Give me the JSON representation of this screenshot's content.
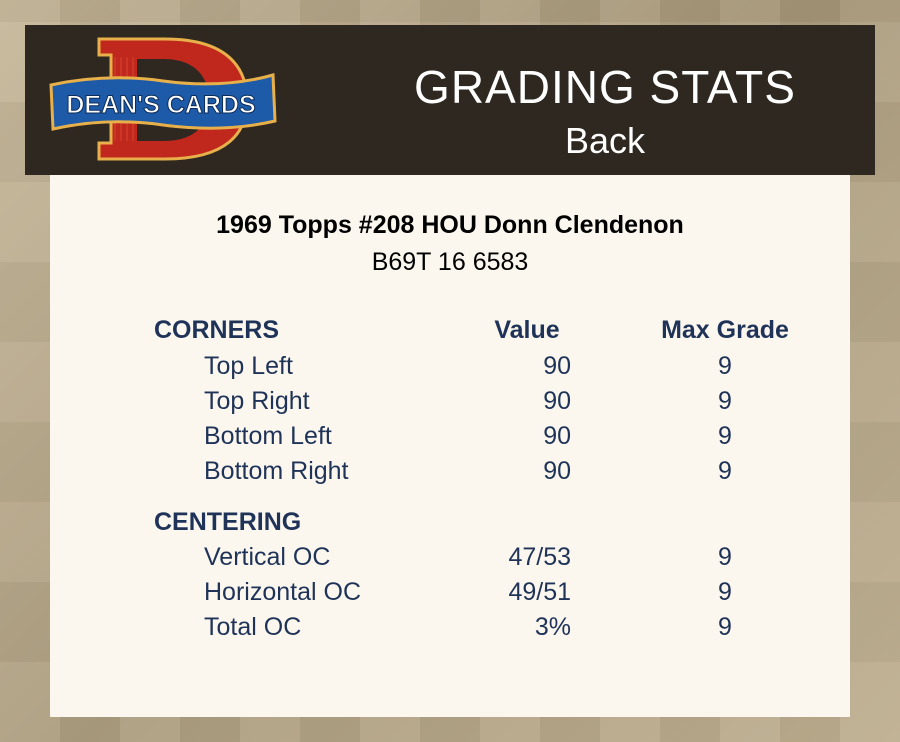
{
  "brand": {
    "logo_text": "DEAN'S CARDS",
    "logo_letter": "D"
  },
  "header": {
    "title": "GRADING STATS",
    "subtitle": "Back"
  },
  "card": {
    "title": "1969 Topps #208 HOU Donn Clendenon",
    "code": "B69T 16 6583"
  },
  "columns": {
    "value": "Value",
    "max_grade": "Max Grade"
  },
  "sections": [
    {
      "name": "CORNERS",
      "rows": [
        {
          "label": "Top Left",
          "value": "90",
          "max": "9"
        },
        {
          "label": "Top Right",
          "value": "90",
          "max": "9"
        },
        {
          "label": "Bottom Left",
          "value": "90",
          "max": "9"
        },
        {
          "label": "Bottom Right",
          "value": "90",
          "max": "9"
        }
      ]
    },
    {
      "name": "CENTERING",
      "rows": [
        {
          "label": "Vertical OC",
          "value": "47/53",
          "max": "9"
        },
        {
          "label": "Horizontal OC",
          "value": "49/51",
          "max": "9"
        },
        {
          "label": "Total OC",
          "value": "3%",
          "max": "9"
        }
      ]
    }
  ],
  "colors": {
    "header_bg": "#2e2820",
    "panel_bg": "#fbf7ee",
    "text_navy": "#1f3358",
    "logo_red": "#c0281e",
    "logo_blue": "#1d5aa8"
  }
}
